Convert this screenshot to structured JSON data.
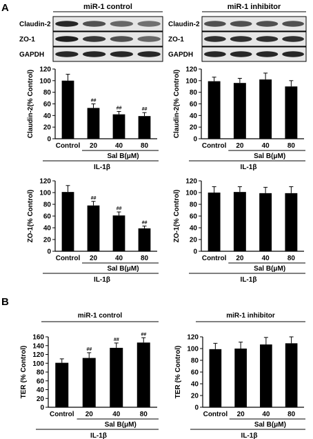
{
  "panel_labels": {
    "a": "A",
    "b": "B"
  },
  "blots": [
    {
      "group_label": "miR-1 control",
      "rows": [
        {
          "label": "Claudin-2",
          "intensities": [
            0.85,
            0.6,
            0.45,
            0.4
          ]
        },
        {
          "label": "ZO-1",
          "intensities": [
            0.9,
            0.75,
            0.6,
            0.45
          ]
        },
        {
          "label": "GAPDH",
          "intensities": [
            0.85,
            0.85,
            0.85,
            0.85
          ]
        }
      ]
    },
    {
      "group_label": "miR-1 inhibitor",
      "rows": [
        {
          "label": "Claudin-2",
          "intensities": [
            0.6,
            0.6,
            0.6,
            0.6
          ]
        },
        {
          "label": "ZO-1",
          "intensities": [
            0.8,
            0.8,
            0.8,
            0.8
          ]
        },
        {
          "label": "GAPDH",
          "intensities": [
            0.85,
            0.85,
            0.85,
            0.85
          ]
        }
      ]
    }
  ],
  "chart_data": [
    {
      "type": "bar",
      "title": "",
      "ylabel": "Claudin-2(% Control)",
      "xlabel": "IL-1β",
      "categories": [
        "Control",
        "20",
        "40",
        "80"
      ],
      "treatment_label": "Sal B(μM)",
      "values": [
        100,
        53,
        42,
        39
      ],
      "errors": [
        11,
        7,
        5,
        6
      ],
      "significance": [
        "",
        "##",
        "##",
        "##"
      ],
      "ylim": [
        0,
        120
      ],
      "yticks": [
        0,
        20,
        40,
        60,
        80,
        100,
        120
      ]
    },
    {
      "type": "bar",
      "title": "",
      "ylabel": "Claudin-2(% Control)",
      "xlabel": "IL-1β",
      "categories": [
        "Control",
        "20",
        "40",
        "80"
      ],
      "treatment_label": "Sal B(μM)",
      "values": [
        99,
        96,
        102,
        90
      ],
      "errors": [
        7,
        8,
        11,
        10
      ],
      "significance": [
        "",
        "",
        "",
        ""
      ],
      "ylim": [
        0,
        120
      ],
      "yticks": [
        0,
        20,
        40,
        60,
        80,
        100,
        120
      ]
    },
    {
      "type": "bar",
      "title": "",
      "ylabel": "ZO-1(% Control)",
      "xlabel": "IL-1β",
      "categories": [
        "Control",
        "20",
        "40",
        "80"
      ],
      "treatment_label": "Sal B(μM)",
      "values": [
        101,
        78,
        61,
        39
      ],
      "errors": [
        11,
        7,
        6,
        4
      ],
      "significance": [
        "",
        "##",
        "##",
        "##"
      ],
      "ylim": [
        0,
        120
      ],
      "yticks": [
        0,
        20,
        40,
        60,
        80,
        100,
        120
      ]
    },
    {
      "type": "bar",
      "title": "",
      "ylabel": "ZO-1(% Control)",
      "xlabel": "IL-1β",
      "categories": [
        "Control",
        "20",
        "40",
        "80"
      ],
      "treatment_label": "Sal B(μM)",
      "values": [
        100,
        101,
        99,
        99
      ],
      "errors": [
        10,
        9,
        10,
        11
      ],
      "significance": [
        "",
        "",
        "",
        ""
      ],
      "ylim": [
        0,
        120
      ],
      "yticks": [
        0,
        20,
        40,
        60,
        80,
        100,
        120
      ]
    },
    {
      "type": "bar",
      "title": "miR-1 control",
      "ylabel": "TER (% Control)",
      "xlabel": "IL-1β",
      "categories": [
        "Control",
        "20",
        "40",
        "80"
      ],
      "treatment_label": "Sal B(μM)",
      "values": [
        101,
        112,
        135,
        147
      ],
      "errors": [
        9,
        12,
        11,
        11
      ],
      "significance": [
        "",
        "##",
        "##",
        "##"
      ],
      "ylim": [
        0,
        160
      ],
      "yticks": [
        0,
        20,
        40,
        60,
        80,
        100,
        120,
        140,
        160
      ]
    },
    {
      "type": "bar",
      "title": "miR-1 inhibitor",
      "ylabel": "TER (% Control)",
      "xlabel": "IL-1β",
      "categories": [
        "Control",
        "20",
        "40",
        "80"
      ],
      "treatment_label": "Sal B(μM)",
      "values": [
        99,
        100,
        107,
        109
      ],
      "errors": [
        10,
        11,
        12,
        11
      ],
      "significance": [
        "",
        "",
        "",
        ""
      ],
      "ylim": [
        0,
        120
      ],
      "yticks": [
        0,
        20,
        40,
        60,
        80,
        100,
        120
      ]
    }
  ]
}
